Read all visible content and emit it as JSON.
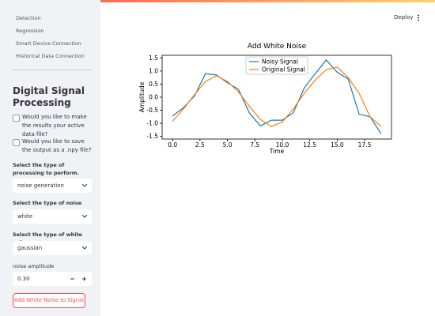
{
  "sidebar": {
    "nav": [
      "Detection",
      "Regression",
      "Smart Device Connection",
      "Historical Data Connection"
    ],
    "heading": "Digital Signal Processing",
    "checkboxes": [
      "Would you like to make the results your active data file?",
      "Would you like to save the output as a .npy file?"
    ],
    "processing_label": "Select the type of processing to perform.",
    "processing_value": "noise generation",
    "noise_label": "Select the type of noise",
    "noise_value": "white",
    "white_label": "Select the type of white noise",
    "white_value": "gaussian",
    "amplitude_label": "noise amplitude",
    "amplitude_value": "0.30",
    "button": "Add White Noise to Signal"
  },
  "header": {
    "deploy": "Deploy"
  },
  "chart_data": {
    "type": "line",
    "title": "Add White Noise",
    "xlabel": "Time",
    "ylabel": "Amplitude",
    "x": [
      0,
      1,
      2,
      3,
      4,
      5,
      6,
      7,
      8,
      9,
      10,
      11,
      12,
      13,
      14,
      15,
      16,
      17,
      18,
      19
    ],
    "series": [
      {
        "name": "Noisy Signal",
        "color": "#1f77b4",
        "values": [
          -0.72,
          -0.4,
          0.05,
          0.9,
          0.85,
          0.55,
          0.3,
          -0.6,
          -1.1,
          -0.88,
          -0.88,
          -0.6,
          0.35,
          0.9,
          1.42,
          0.95,
          0.7,
          -0.65,
          -0.75,
          -1.4
        ]
      },
      {
        "name": "Original Signal",
        "color": "#ff7f0e",
        "values": [
          -0.92,
          -0.45,
          0.1,
          0.6,
          0.82,
          0.6,
          0.2,
          -0.35,
          -0.85,
          -1.12,
          -0.95,
          -0.45,
          0.15,
          0.65,
          1.05,
          1.15,
          0.75,
          0.15,
          -0.75,
          -1.12
        ]
      }
    ],
    "xlim": [
      -0.95,
      19.95
    ],
    "ylim": [
      -1.6,
      1.6
    ],
    "xticks": [
      {
        "value": 0,
        "label": "0.0"
      },
      2.5,
      {
        "value": 5,
        "label": "5.0"
      },
      7.5,
      {
        "value": 10,
        "label": "10.0"
      },
      12.5,
      {
        "value": 15,
        "label": "15.0"
      },
      17.5
    ],
    "yticks": [
      -1.5,
      {
        "value": -1,
        "label": "-1.0"
      },
      -0.5,
      {
        "value": 0,
        "label": "0.0"
      },
      0.5,
      {
        "value": 1,
        "label": "1.0"
      },
      1.5
    ],
    "legend": "upper center"
  }
}
